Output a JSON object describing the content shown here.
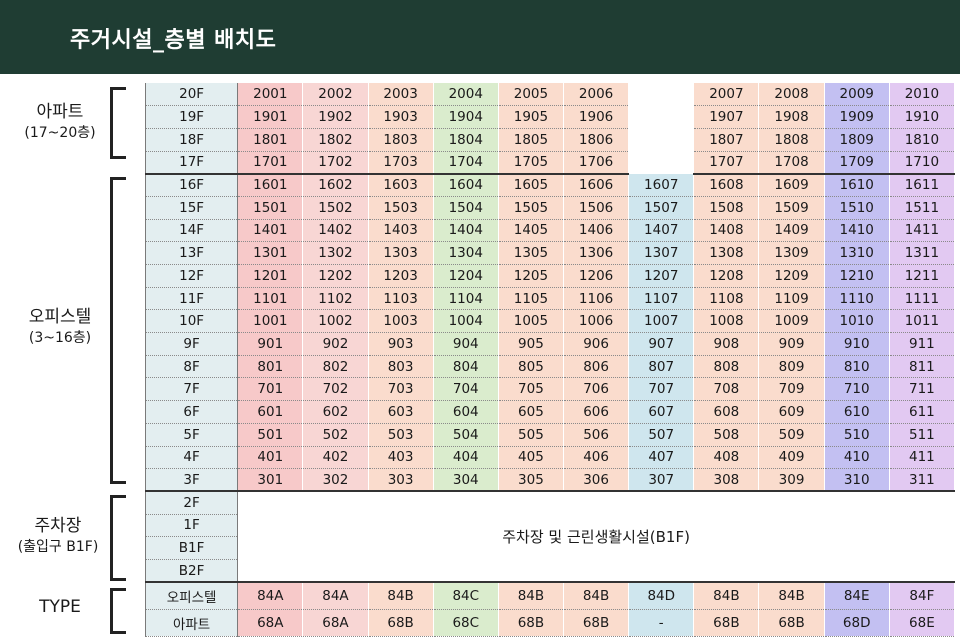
{
  "header": {
    "title": "주거시설_층별 배치도"
  },
  "sections": {
    "apartment": {
      "label": "아파트",
      "sub": "(17~20층)"
    },
    "office": {
      "label": "오피스텔",
      "sub": "(3~16층)"
    },
    "parking": {
      "label": "주차장",
      "sub": "(출입구 B1F)"
    },
    "type": {
      "label": "TYPE"
    }
  },
  "floors": [
    {
      "floor": "20F",
      "units": [
        "2001",
        "2002",
        "2003",
        "2004",
        "2005",
        "2006",
        "",
        "2007",
        "2008",
        "2009",
        "2010"
      ]
    },
    {
      "floor": "19F",
      "units": [
        "1901",
        "1902",
        "1903",
        "1904",
        "1905",
        "1906",
        "",
        "1907",
        "1908",
        "1909",
        "1910"
      ]
    },
    {
      "floor": "18F",
      "units": [
        "1801",
        "1802",
        "1803",
        "1804",
        "1805",
        "1806",
        "",
        "1807",
        "1808",
        "1809",
        "1810"
      ]
    },
    {
      "floor": "17F",
      "units": [
        "1701",
        "1702",
        "1703",
        "1704",
        "1705",
        "1706",
        "",
        "1707",
        "1708",
        "1709",
        "1710"
      ]
    },
    {
      "floor": "16F",
      "units": [
        "1601",
        "1602",
        "1603",
        "1604",
        "1605",
        "1606",
        "1607",
        "1608",
        "1609",
        "1610",
        "1611"
      ]
    },
    {
      "floor": "15F",
      "units": [
        "1501",
        "1502",
        "1503",
        "1504",
        "1505",
        "1506",
        "1507",
        "1508",
        "1509",
        "1510",
        "1511"
      ]
    },
    {
      "floor": "14F",
      "units": [
        "1401",
        "1402",
        "1403",
        "1404",
        "1405",
        "1406",
        "1407",
        "1408",
        "1409",
        "1410",
        "1411"
      ]
    },
    {
      "floor": "13F",
      "units": [
        "1301",
        "1302",
        "1303",
        "1304",
        "1305",
        "1306",
        "1307",
        "1308",
        "1309",
        "1310",
        "1311"
      ]
    },
    {
      "floor": "12F",
      "units": [
        "1201",
        "1202",
        "1203",
        "1204",
        "1205",
        "1206",
        "1207",
        "1208",
        "1209",
        "1210",
        "1211"
      ]
    },
    {
      "floor": "11F",
      "units": [
        "1101",
        "1102",
        "1103",
        "1104",
        "1105",
        "1106",
        "1107",
        "1108",
        "1109",
        "1110",
        "1111"
      ]
    },
    {
      "floor": "10F",
      "units": [
        "1001",
        "1002",
        "1003",
        "1004",
        "1005",
        "1006",
        "1007",
        "1008",
        "1009",
        "1010",
        "1011"
      ]
    },
    {
      "floor": "9F",
      "units": [
        "901",
        "902",
        "903",
        "904",
        "905",
        "906",
        "907",
        "908",
        "909",
        "910",
        "911"
      ]
    },
    {
      "floor": "8F",
      "units": [
        "801",
        "802",
        "803",
        "804",
        "805",
        "806",
        "807",
        "808",
        "809",
        "810",
        "811"
      ]
    },
    {
      "floor": "7F",
      "units": [
        "701",
        "702",
        "703",
        "704",
        "705",
        "706",
        "707",
        "708",
        "709",
        "710",
        "711"
      ]
    },
    {
      "floor": "6F",
      "units": [
        "601",
        "602",
        "603",
        "604",
        "605",
        "606",
        "607",
        "608",
        "609",
        "610",
        "611"
      ]
    },
    {
      "floor": "5F",
      "units": [
        "501",
        "502",
        "503",
        "504",
        "505",
        "506",
        "507",
        "508",
        "509",
        "510",
        "511"
      ]
    },
    {
      "floor": "4F",
      "units": [
        "401",
        "402",
        "403",
        "404",
        "405",
        "406",
        "407",
        "408",
        "409",
        "410",
        "411"
      ]
    },
    {
      "floor": "3F",
      "units": [
        "301",
        "302",
        "303",
        "304",
        "305",
        "306",
        "307",
        "308",
        "309",
        "310",
        "311"
      ]
    }
  ],
  "parking_floors": [
    "2F",
    "1F",
    "B1F",
    "B2F"
  ],
  "parking_text": "주차장 및 근린생활시설(B1F)",
  "types": [
    {
      "label": "오피스텔",
      "values": [
        "84A",
        "84A",
        "84B",
        "84C",
        "84B",
        "84B",
        "84D",
        "84B",
        "84B",
        "84E",
        "84F"
      ]
    },
    {
      "label": "아파트",
      "values": [
        "68A",
        "68A",
        "68B",
        "68C",
        "68B",
        "68B",
        "-",
        "68B",
        "68B",
        "68D",
        "68E"
      ]
    }
  ],
  "column_colors": [
    "#f7c9c9",
    "#f8d6d4",
    "#fadccd",
    "#daeccd",
    "#fadccd",
    "#fadccd",
    "#cfe6ee",
    "#fadccd",
    "#fadccd",
    "#c3c0f2",
    "#e2c9f2"
  ],
  "header_color": "#1f3d33"
}
